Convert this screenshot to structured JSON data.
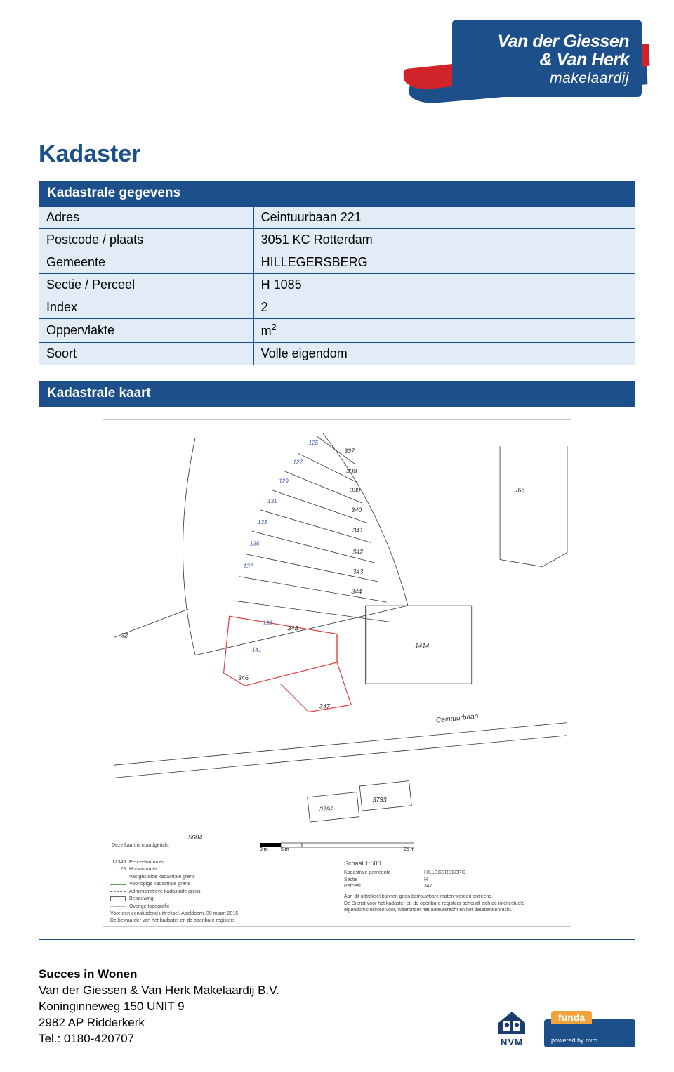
{
  "logo": {
    "line1": "Van der Giessen",
    "line2": "& Van Herk",
    "sub": "makelaardij",
    "box_bg": "#1d4f8b",
    "swoosh_red": "#d0232a",
    "swoosh_blue": "#1d4f8b"
  },
  "page_title": "Kadaster",
  "section1_header": "Kadastrale gegevens",
  "table": {
    "rows": [
      {
        "label": "Adres",
        "value": "Ceintuurbaan 221"
      },
      {
        "label": "Postcode / plaats",
        "value": "3051 KC Rotterdam"
      },
      {
        "label": "Gemeente",
        "value": "HILLEGERSBERG"
      },
      {
        "label": "Sectie / Perceel",
        "value": "H 1085"
      },
      {
        "label": "Index",
        "value": "2"
      },
      {
        "label": "Oppervlakte",
        "value": " m²"
      },
      {
        "label": "Soort",
        "value": "Volle eigendom"
      }
    ]
  },
  "section2_header": "Kadastrale kaart",
  "map": {
    "street_label": "Ceintuurbaan",
    "parcel_labels": [
      "337",
      "338",
      "339",
      "340",
      "341",
      "342",
      "343",
      "344",
      "345",
      "346",
      "347",
      "965",
      "1414",
      "3792",
      "3793",
      "5604"
    ],
    "house_nums": [
      "125",
      "127",
      "129",
      "131",
      "133",
      "135",
      "137",
      "139",
      "141"
    ],
    "other_labels": [
      "32"
    ],
    "legend": {
      "north": "Deze kaart is noordgericht",
      "sample_parcel": "12345",
      "sample_house": "25",
      "rows_left": [
        "Perceelnummer",
        "Huisnummer",
        "Vastgestelde kadastrale grens",
        "Voorlopige kadastrale grens",
        "Administratieve kadastrale grens",
        "Bebouwing",
        "Overige topografie"
      ],
      "uittreksel": "Voor een eensluidend uittreksel, Apeldoorn, 30 maart 2015",
      "bewaarder": "De bewaarder van het kadaster en de openbare registers",
      "schaal": "Schaal 1:500",
      "right_rows": [
        {
          "label": "Kadastrale gemeente",
          "value": "HILLEGERSBERG"
        },
        {
          "label": "Sectie",
          "value": "H"
        },
        {
          "label": "Perceel",
          "value": "347"
        }
      ],
      "disclaimer": "Aan dit uittreksel kunnen geen betrouwbare maten worden ontleend.\nDe Dienst voor het kadaster en de openbare registers behoudt zich de intellectuele\neigendomsrechten voor, waaronder het auteursrecht en het databankenrecht.",
      "scale_ticks": [
        "0 m",
        "5 m",
        "25 m"
      ]
    }
  },
  "footer": {
    "slogan": "Succes in Wonen",
    "company": "Van der Giessen & Van Herk Makelaardij B.V.",
    "addr1": "Koninginneweg 150 UNIT 9",
    "addr2": "2982 AP Ridderkerk",
    "tel": "Tel.: 0180-420707",
    "nvm": "NVM",
    "funda": "funda",
    "funda_sub": "powered by nvm"
  },
  "colors": {
    "primary": "#1d4f8b",
    "row_bg": "#e2ecf6",
    "red": "#d0232a",
    "orange": "#f1a33a"
  }
}
